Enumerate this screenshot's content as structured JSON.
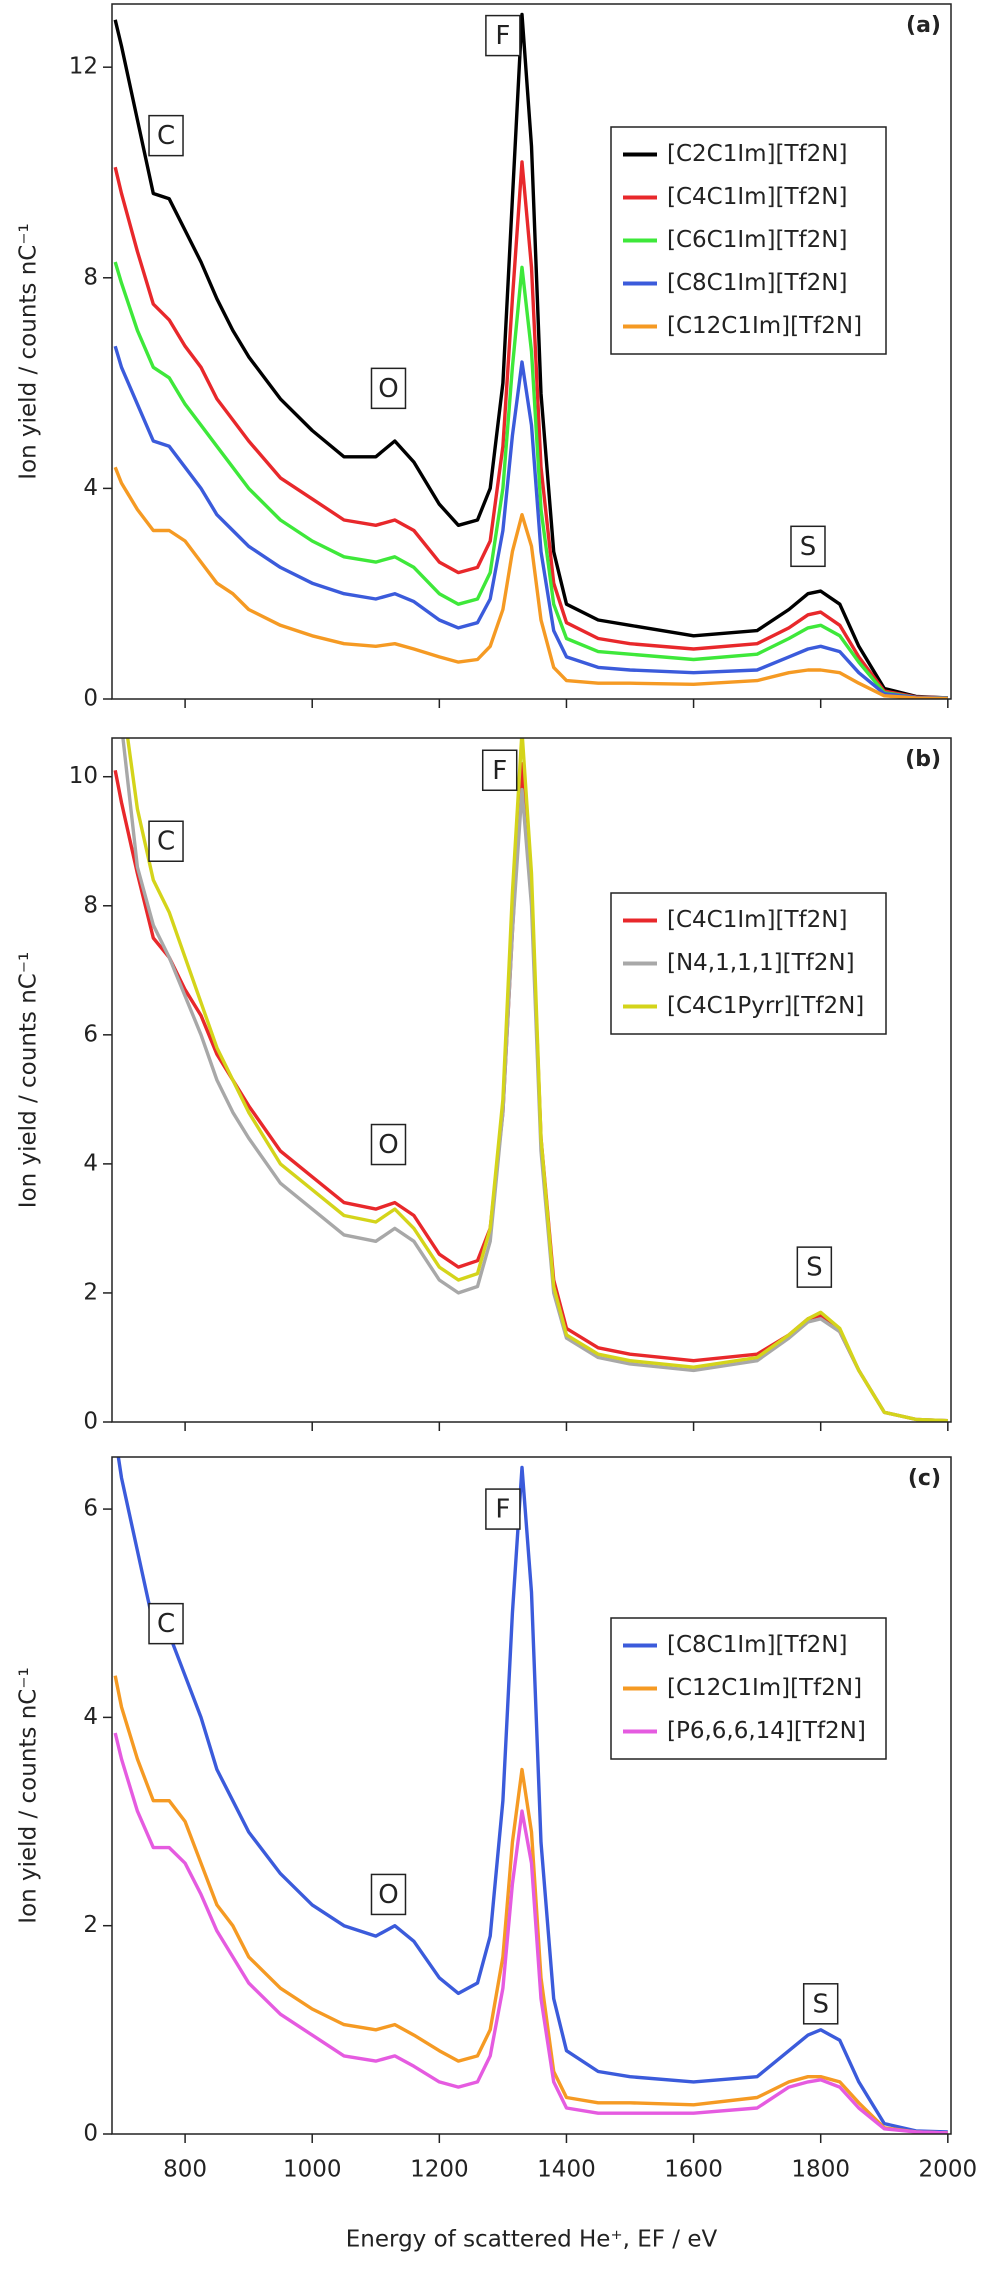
{
  "chart_data": [
    {
      "type": "line",
      "panel_label": "(a)",
      "ylabel": "Ion yield / counts nC⁻¹",
      "annotations": [
        "C",
        "O",
        "F",
        "S"
      ],
      "xlim": [
        685,
        2005
      ],
      "xticks": [
        800,
        1000,
        1200,
        1400,
        1600,
        1800,
        2000
      ],
      "ylim": [
        0,
        13.2
      ],
      "yticks": [
        0,
        4,
        8,
        12
      ],
      "legend": "right",
      "x": [
        690,
        700,
        725,
        750,
        775,
        800,
        825,
        850,
        875,
        900,
        950,
        1000,
        1050,
        1100,
        1130,
        1160,
        1200,
        1230,
        1260,
        1280,
        1300,
        1315,
        1330,
        1345,
        1360,
        1380,
        1400,
        1450,
        1500,
        1600,
        1700,
        1750,
        1780,
        1800,
        1830,
        1860,
        1900,
        1950,
        2000
      ],
      "series": [
        {
          "name": "[C2C1Im][Tf2N]",
          "color": "#000000",
          "values": [
            12.9,
            12.4,
            11.0,
            9.6,
            9.5,
            8.9,
            8.3,
            7.6,
            7.0,
            6.5,
            5.7,
            5.1,
            4.6,
            4.6,
            4.9,
            4.5,
            3.7,
            3.3,
            3.4,
            4.0,
            6.0,
            9.5,
            13.0,
            10.5,
            5.8,
            2.8,
            1.8,
            1.5,
            1.4,
            1.2,
            1.3,
            1.7,
            2.0,
            2.05,
            1.8,
            1.0,
            0.2,
            0.05,
            0.02
          ]
        },
        {
          "name": "[C4C1Im][Tf2N]",
          "color": "#e8282b",
          "values": [
            10.1,
            9.6,
            8.5,
            7.5,
            7.2,
            6.7,
            6.3,
            5.7,
            5.3,
            4.9,
            4.2,
            3.8,
            3.4,
            3.3,
            3.4,
            3.2,
            2.6,
            2.4,
            2.5,
            3.0,
            4.8,
            7.6,
            10.2,
            8.2,
            4.4,
            2.2,
            1.45,
            1.15,
            1.05,
            0.95,
            1.05,
            1.35,
            1.6,
            1.65,
            1.4,
            0.8,
            0.15,
            0.04,
            0.02
          ]
        },
        {
          "name": "[C6C1Im][Tf2N]",
          "color": "#3ee83a",
          "values": [
            8.3,
            7.9,
            7.0,
            6.3,
            6.1,
            5.6,
            5.2,
            4.8,
            4.4,
            4.0,
            3.4,
            3.0,
            2.7,
            2.6,
            2.7,
            2.5,
            2.0,
            1.8,
            1.9,
            2.4,
            4.0,
            6.3,
            8.2,
            6.6,
            3.6,
            1.8,
            1.15,
            0.9,
            0.85,
            0.75,
            0.85,
            1.15,
            1.35,
            1.4,
            1.2,
            0.7,
            0.12,
            0.03,
            0.02
          ]
        },
        {
          "name": "[C8C1Im][Tf2N]",
          "color": "#3b5bdb",
          "values": [
            6.7,
            6.3,
            5.6,
            4.9,
            4.8,
            4.4,
            4.0,
            3.5,
            3.2,
            2.9,
            2.5,
            2.2,
            2.0,
            1.9,
            2.0,
            1.85,
            1.5,
            1.35,
            1.45,
            1.9,
            3.2,
            5.0,
            6.4,
            5.2,
            2.8,
            1.3,
            0.8,
            0.6,
            0.55,
            0.5,
            0.55,
            0.8,
            0.95,
            1.0,
            0.9,
            0.5,
            0.1,
            0.03,
            0.02
          ]
        },
        {
          "name": "[C12C1Im][Tf2N]",
          "color": "#f59a23",
          "values": [
            4.4,
            4.1,
            3.6,
            3.2,
            3.2,
            3.0,
            2.6,
            2.2,
            2.0,
            1.7,
            1.4,
            1.2,
            1.05,
            1.0,
            1.05,
            0.95,
            0.8,
            0.7,
            0.75,
            1.0,
            1.7,
            2.8,
            3.5,
            2.9,
            1.5,
            0.6,
            0.35,
            0.3,
            0.3,
            0.28,
            0.35,
            0.5,
            0.55,
            0.55,
            0.5,
            0.3,
            0.06,
            0.02,
            0.01
          ]
        }
      ]
    },
    {
      "type": "line",
      "panel_label": "(b)",
      "ylabel": "Ion yield / counts nC⁻¹",
      "annotations": [
        "C",
        "O",
        "F",
        "S"
      ],
      "xlim": [
        685,
        2005
      ],
      "xticks": [
        800,
        1000,
        1200,
        1400,
        1600,
        1800,
        2000
      ],
      "ylim": [
        0,
        10.6
      ],
      "yticks": [
        0,
        2,
        4,
        6,
        8,
        10
      ],
      "legend": "right",
      "x": [
        690,
        700,
        725,
        750,
        775,
        800,
        825,
        850,
        875,
        900,
        950,
        1000,
        1050,
        1100,
        1130,
        1160,
        1200,
        1230,
        1260,
        1280,
        1300,
        1315,
        1330,
        1345,
        1360,
        1380,
        1400,
        1450,
        1500,
        1600,
        1700,
        1750,
        1780,
        1800,
        1830,
        1860,
        1900,
        1950,
        2000
      ],
      "series": [
        {
          "name": "[C4C1Im][Tf2N]",
          "color": "#e8282b",
          "values": [
            10.1,
            9.6,
            8.5,
            7.5,
            7.2,
            6.7,
            6.3,
            5.7,
            5.3,
            4.9,
            4.2,
            3.8,
            3.4,
            3.3,
            3.4,
            3.2,
            2.6,
            2.4,
            2.5,
            3.0,
            4.8,
            7.6,
            10.2,
            8.2,
            4.4,
            2.2,
            1.45,
            1.15,
            1.05,
            0.95,
            1.05,
            1.35,
            1.6,
            1.65,
            1.4,
            0.8,
            0.15,
            0.04,
            0.02
          ]
        },
        {
          "name": "[N4,1,1,1][Tf2N]",
          "color": "#a8a8a8",
          "values": [
            11.5,
            10.8,
            8.6,
            7.7,
            7.2,
            6.6,
            6.0,
            5.3,
            4.8,
            4.4,
            3.7,
            3.3,
            2.9,
            2.8,
            3.0,
            2.8,
            2.2,
            2.0,
            2.1,
            2.8,
            4.8,
            7.6,
            9.8,
            8.0,
            4.2,
            2.0,
            1.3,
            1.0,
            0.9,
            0.8,
            0.95,
            1.3,
            1.55,
            1.6,
            1.4,
            0.8,
            0.15,
            0.04,
            0.02
          ]
        },
        {
          "name": "[C4C1Pyrr][Tf2N]",
          "color": "#d4d41a",
          "values": [
            12.0,
            11.3,
            9.5,
            8.4,
            7.9,
            7.2,
            6.5,
            5.8,
            5.3,
            4.8,
            4.0,
            3.6,
            3.2,
            3.1,
            3.3,
            3.0,
            2.4,
            2.2,
            2.3,
            3.0,
            5.0,
            8.2,
            10.7,
            8.5,
            4.4,
            2.1,
            1.35,
            1.05,
            0.95,
            0.85,
            1.0,
            1.35,
            1.6,
            1.7,
            1.45,
            0.8,
            0.15,
            0.04,
            0.02
          ]
        }
      ]
    },
    {
      "type": "line",
      "panel_label": "(c)",
      "ylabel": "Ion yield / counts nC⁻¹",
      "xlabel": "Energy of scattered He⁺, EF / eV",
      "annotations": [
        "C",
        "O",
        "F",
        "S"
      ],
      "xlim": [
        685,
        2005
      ],
      "xticks": [
        800,
        1000,
        1200,
        1400,
        1600,
        1800,
        2000
      ],
      "ylim": [
        0,
        6.5
      ],
      "yticks": [
        0,
        2,
        4,
        6
      ],
      "legend": "right",
      "x": [
        690,
        700,
        725,
        750,
        775,
        800,
        825,
        850,
        875,
        900,
        950,
        1000,
        1050,
        1100,
        1130,
        1160,
        1200,
        1230,
        1260,
        1280,
        1300,
        1315,
        1330,
        1345,
        1360,
        1380,
        1400,
        1450,
        1500,
        1600,
        1700,
        1750,
        1780,
        1800,
        1830,
        1860,
        1900,
        1950,
        2000
      ],
      "series": [
        {
          "name": "[C8C1Im][Tf2N]",
          "color": "#3b5bdb",
          "values": [
            6.7,
            6.3,
            5.6,
            4.9,
            4.8,
            4.4,
            4.0,
            3.5,
            3.2,
            2.9,
            2.5,
            2.2,
            2.0,
            1.9,
            2.0,
            1.85,
            1.5,
            1.35,
            1.45,
            1.9,
            3.2,
            5.0,
            6.4,
            5.2,
            2.8,
            1.3,
            0.8,
            0.6,
            0.55,
            0.5,
            0.55,
            0.8,
            0.95,
            1.0,
            0.9,
            0.5,
            0.1,
            0.03,
            0.02
          ]
        },
        {
          "name": "[C12C1Im][Tf2N]",
          "color": "#f59a23",
          "values": [
            4.4,
            4.1,
            3.6,
            3.2,
            3.2,
            3.0,
            2.6,
            2.2,
            2.0,
            1.7,
            1.4,
            1.2,
            1.05,
            1.0,
            1.05,
            0.95,
            0.8,
            0.7,
            0.75,
            1.0,
            1.7,
            2.8,
            3.5,
            2.9,
            1.5,
            0.6,
            0.35,
            0.3,
            0.3,
            0.28,
            0.35,
            0.5,
            0.55,
            0.55,
            0.5,
            0.3,
            0.06,
            0.02,
            0.01
          ]
        },
        {
          "name": "[P6,6,6,14][Tf2N]",
          "color": "#e55be0",
          "values": [
            3.85,
            3.6,
            3.1,
            2.75,
            2.75,
            2.6,
            2.3,
            1.95,
            1.7,
            1.45,
            1.15,
            0.95,
            0.75,
            0.7,
            0.75,
            0.65,
            0.5,
            0.45,
            0.5,
            0.75,
            1.4,
            2.4,
            3.1,
            2.6,
            1.3,
            0.5,
            0.25,
            0.2,
            0.2,
            0.2,
            0.25,
            0.45,
            0.5,
            0.52,
            0.45,
            0.25,
            0.05,
            0.02,
            0.01
          ]
        }
      ]
    }
  ]
}
